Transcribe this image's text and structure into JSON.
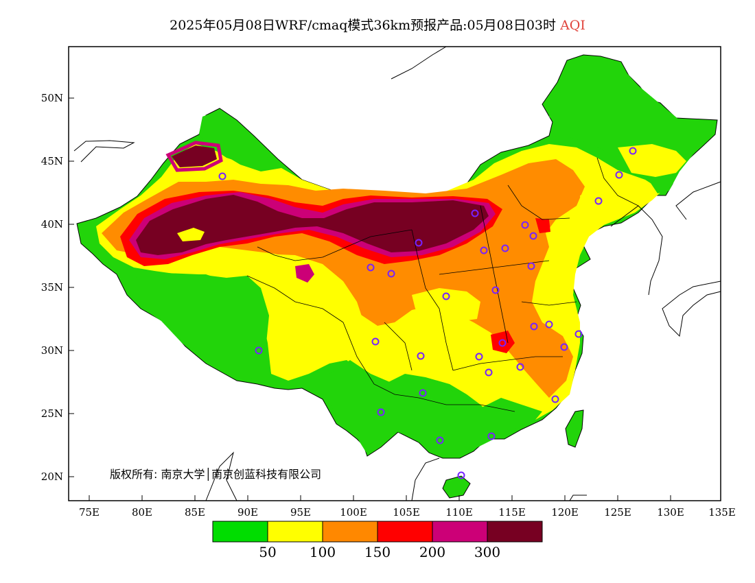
{
  "title": {
    "main": "2025年05月08日WRF/cmaq模式36km预报产品:05月08日03时",
    "variable": "AQI"
  },
  "map": {
    "lon_ticks": [
      "75E",
      "80E",
      "85E",
      "90E",
      "95E",
      "100E",
      "105E",
      "110E",
      "115E",
      "120E",
      "125E",
      "130E",
      "135E"
    ],
    "lat_ticks": [
      "50N",
      "45N",
      "40N",
      "35N",
      "30N",
      "25N",
      "20N"
    ],
    "copyright": "版权所有: 南京大学│南京创蓝科技有限公司"
  },
  "legend": {
    "colors": [
      "#00dd00",
      "#ffff00",
      "#ff8800",
      "#ff0000",
      "#cc0077",
      "#770022"
    ],
    "labels": [
      "50",
      "100",
      "150",
      "200",
      "300"
    ]
  }
}
